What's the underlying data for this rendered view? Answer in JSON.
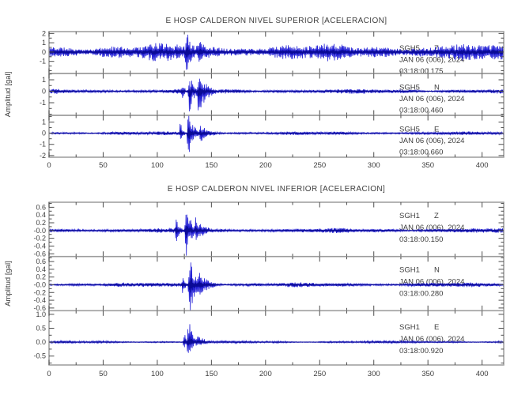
{
  "figure": {
    "background": "#ffffff",
    "trace_color": "#2320d6",
    "trace_core_color": "#0a0a96",
    "frame_color": "#9c9c9c",
    "tick_color": "#4d4d4d",
    "text_color": "#3d3d3d"
  },
  "chart_data": [
    {
      "type": "line",
      "title": "E HOSP CALDERON NIVEL SUPERIOR [ACELERACION]",
      "ylabel": "Amplitud [gal]",
      "grid": false,
      "legend": "none",
      "x": {
        "min": 0,
        "max": 420,
        "major_step": 50,
        "minor_step": 25,
        "tick_labels": [
          "0",
          "50",
          "100",
          "150",
          "200",
          "250",
          "300",
          "350",
          "400"
        ]
      },
      "traces": [
        {
          "station": "SGH5",
          "component": "Z",
          "date_label": "JAN 06 (006), 2024",
          "time_label": "03:18:00.175",
          "ylim": [
            -2.3,
            2.2
          ],
          "ytick_values": [
            2,
            1,
            0,
            -1
          ],
          "ytick_labels": [
            "2",
            "1",
            "0",
            "-1"
          ],
          "y_minor_step": 0.5,
          "noise_amp_gal": 0.78,
          "neg_pos_ratio": 1.05,
          "seed": 11,
          "events": [
            {
              "t_s": 116.5,
              "peak_gal": 1.35,
              "rise_s": 0.8,
              "decay_s": 3
            },
            {
              "t_s": 125.5,
              "peak_gal": 2.4,
              "rise_s": 1.5,
              "decay_s": 5.5
            },
            {
              "t_s": 136.0,
              "peak_gal": 1.3,
              "rise_s": 2.0,
              "decay_s": 11
            }
          ]
        },
        {
          "station": "SGH5",
          "component": "N",
          "date_label": "JAN 06 (006), 2024",
          "time_label": "03:18:00.460",
          "ylim": [
            -2.1,
            1.55
          ],
          "ytick_values": [
            1,
            0,
            -1
          ],
          "ytick_labels": [
            "1",
            "0",
            "-1"
          ],
          "y_minor_step": 0.5,
          "noise_amp_gal": 0.17,
          "neg_pos_ratio": 1.15,
          "seed": 12,
          "events": [
            {
              "t_s": 122.0,
              "peak_gal": 0.85,
              "rise_s": 0.8,
              "decay_s": 2.5
            },
            {
              "t_s": 128.5,
              "peak_gal": 1.75,
              "rise_s": 1.2,
              "decay_s": 4
            },
            {
              "t_s": 136.5,
              "peak_gal": 1.9,
              "rise_s": 1.5,
              "decay_s": 7
            }
          ]
        },
        {
          "station": "SGH5",
          "component": "E",
          "date_label": "JAN 06 (006), 2024",
          "time_label": "03:18:00.660",
          "ylim": [
            -2.15,
            1.6
          ],
          "ytick_values": [
            1,
            0,
            -1,
            -2
          ],
          "ytick_labels": [
            "1",
            "0",
            "-1",
            "-2"
          ],
          "y_minor_step": 0.5,
          "noise_amp_gal": 0.13,
          "neg_pos_ratio": 1.1,
          "seed": 13,
          "events": [
            {
              "t_s": 120.5,
              "peak_gal": 1.1,
              "rise_s": 0.7,
              "decay_s": 2
            },
            {
              "t_s": 127.5,
              "peak_gal": 2.2,
              "rise_s": 1.2,
              "decay_s": 4.5
            },
            {
              "t_s": 138.0,
              "peak_gal": 0.7,
              "rise_s": 2.0,
              "decay_s": 9
            }
          ]
        }
      ]
    },
    {
      "type": "line",
      "title": "E HOSP CALDERON NIVEL INFERIOR [ACELERACION]",
      "ylabel": "Amplitud [gal]",
      "grid": false,
      "legend": "none",
      "x": {
        "min": 0,
        "max": 420,
        "major_step": 50,
        "minor_step": 25,
        "tick_labels": [
          "0",
          "50",
          "100",
          "150",
          "200",
          "250",
          "300",
          "350",
          "400"
        ]
      },
      "traces": [
        {
          "station": "SGH1",
          "component": "Z",
          "date_label": "JAN 06 (006), 2024",
          "time_label": "03:18:00.150",
          "ylim": [
            -0.67,
            0.73
          ],
          "ytick_values": [
            0.6,
            0.4,
            0.2,
            0,
            -0.2,
            -0.4,
            -0.6
          ],
          "ytick_labels": [
            "0.6",
            "0.4",
            "0.2",
            "-0.0",
            "-0.2",
            "-0.4",
            "-0.6"
          ],
          "y_minor_step": 0.1,
          "noise_amp_gal": 0.055,
          "neg_pos_ratio": 1.0,
          "seed": 21,
          "events": [
            {
              "t_s": 116.5,
              "peak_gal": 0.45,
              "rise_s": 0.7,
              "decay_s": 2.5
            },
            {
              "t_s": 125.5,
              "peak_gal": 0.8,
              "rise_s": 1.2,
              "decay_s": 4.5
            },
            {
              "t_s": 134.0,
              "peak_gal": 0.35,
              "rise_s": 1.5,
              "decay_s": 8
            }
          ]
        },
        {
          "station": "SGH1",
          "component": "N",
          "date_label": "JAN 06 (006), 2024",
          "time_label": "03:18:00.280",
          "ylim": [
            -0.67,
            0.73
          ],
          "ytick_values": [
            0.6,
            0.4,
            0.2,
            0,
            -0.2,
            -0.4,
            -0.6
          ],
          "ytick_labels": [
            "0.6",
            "0.4",
            "0.2",
            "-0.0",
            "-0.2",
            "-0.4",
            "-0.6"
          ],
          "y_minor_step": 0.1,
          "noise_amp_gal": 0.05,
          "neg_pos_ratio": 1.05,
          "seed": 22,
          "events": [
            {
              "t_s": 122.5,
              "peak_gal": 0.3,
              "rise_s": 0.8,
              "decay_s": 2.5
            },
            {
              "t_s": 128.5,
              "peak_gal": 0.78,
              "rise_s": 1.2,
              "decay_s": 5
            },
            {
              "t_s": 137.0,
              "peak_gal": 0.35,
              "rise_s": 1.5,
              "decay_s": 8
            }
          ]
        },
        {
          "station": "SGH1",
          "component": "E",
          "date_label": "JAN 06 (006), 2024",
          "time_label": "03:18:00.920",
          "ylim": [
            -0.82,
            1.13
          ],
          "ytick_values": [
            1.0,
            0.5,
            0.0,
            -0.5
          ],
          "ytick_labels": [
            "1.0",
            "0.5",
            "0.0",
            "-0.5"
          ],
          "y_minor_step": 0.25,
          "noise_amp_gal": 0.045,
          "neg_pos_ratio": 0.75,
          "seed": 23,
          "events": [
            {
              "t_s": 124.0,
              "peak_gal": 0.45,
              "rise_s": 0.7,
              "decay_s": 2
            },
            {
              "t_s": 127.5,
              "peak_gal": 1.1,
              "rise_s": 1.0,
              "decay_s": 3.5
            },
            {
              "t_s": 135.0,
              "peak_gal": 0.3,
              "rise_s": 1.5,
              "decay_s": 7
            }
          ]
        }
      ]
    }
  ]
}
